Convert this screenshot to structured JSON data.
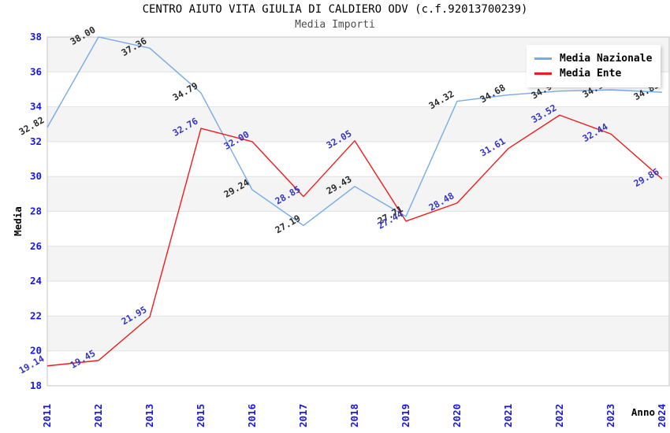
{
  "header": {
    "title": "CENTRO AIUTO VITA GIULIA DI CALDIERO ODV (c.f.92013700239)",
    "subtitle": "Media Importi"
  },
  "legend": {
    "items": [
      {
        "label": "Media Nazionale",
        "color": "#74abe8"
      },
      {
        "label": "Media Ente",
        "color": "#ee1c1c"
      }
    ]
  },
  "axes": {
    "y_title": "Media",
    "x_title": "Anno",
    "y_ticks": [
      "18",
      "20",
      "22",
      "24",
      "26",
      "28",
      "30",
      "32",
      "34",
      "36",
      "38"
    ],
    "x_ticks": [
      "2011",
      "2012",
      "2013",
      "2015",
      "2016",
      "2017",
      "2018",
      "2019",
      "2020",
      "2021",
      "2022",
      "2023",
      "2024"
    ],
    "tick_color": "#1818dd"
  },
  "chart_data": {
    "type": "line",
    "title": "CENTRO AIUTO VITA GIULIA DI CALDIERO ODV (c.f.92013700239)",
    "subtitle": "Media Importi",
    "xlabel": "Anno",
    "ylabel": "Media",
    "categories": [
      "2011",
      "2012",
      "2013",
      "2015",
      "2016",
      "2017",
      "2018",
      "2019",
      "2020",
      "2021",
      "2022",
      "2023",
      "2024"
    ],
    "series": [
      {
        "name": "Media Nazionale",
        "color": "#74abe8",
        "label_color": "#2b2b2b",
        "values": [
          32.82,
          38.0,
          37.36,
          34.79,
          29.24,
          27.19,
          29.43,
          27.71,
          34.32,
          34.68,
          34.9,
          34.97,
          34.83
        ],
        "labels": [
          "32.82",
          "38.00",
          "37.36",
          "34.79",
          "29.24",
          "27.19",
          "29.43",
          "27.71",
          "34.32",
          "34.68",
          "34.90",
          "34.97",
          "34.83"
        ]
      },
      {
        "name": "Media Ente",
        "color": "#ee1c1c",
        "label_color": "#3535c8",
        "values": [
          19.14,
          19.45,
          21.95,
          32.76,
          32.0,
          28.85,
          32.05,
          27.44,
          28.48,
          31.61,
          33.52,
          32.44,
          29.86
        ],
        "labels": [
          "19.14",
          "19.45",
          "21.95",
          "32.76",
          "32.00",
          "28.85",
          "32.05",
          "27.44",
          "28.48",
          "31.61",
          "33.52",
          "32.44",
          "29.86"
        ]
      }
    ],
    "ylim": [
      18,
      38
    ],
    "ytick_step": 2,
    "grid": true,
    "band_color": "#f4f4f4",
    "gridline_color": "#e2e2e2",
    "frame_color": "#c4c4c4",
    "legend_position": "top-right"
  }
}
